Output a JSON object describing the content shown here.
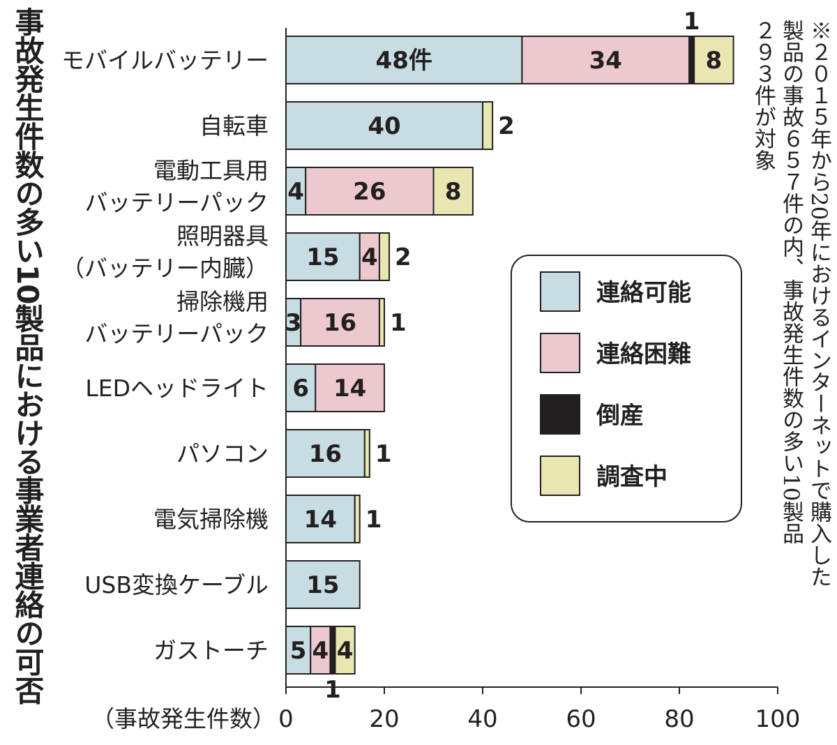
{
  "chart_data": {
    "type": "bar",
    "orientation": "horizontal",
    "stacked": true,
    "title": "事故発生件数の多い10製品における事業者連絡の可否",
    "xlabel": "（事故発生件数）",
    "xlim": [
      0,
      100
    ],
    "xticks": [
      "0",
      "20",
      "40",
      "60",
      "80",
      "100"
    ],
    "grid": false,
    "legend_position": "right",
    "note": [
      "※２０１５年から20年におけるインターネットで購入した",
      "製品の事故６５７件の内、事故発生件数の多い10製品",
      "２９３件が対象"
    ],
    "categories": [
      [
        "モバイルバッテリー"
      ],
      [
        "自転車"
      ],
      [
        "電動工具用",
        "バッテリーパック"
      ],
      [
        "照明器具",
        "（バッテリー内臓）"
      ],
      [
        "掃除機用",
        "バッテリーパック"
      ],
      [
        "LEDヘッドライト"
      ],
      [
        "パソコン"
      ],
      [
        "電気掃除機"
      ],
      [
        "USB変換ケーブル"
      ],
      [
        "ガストーチ"
      ]
    ],
    "series": [
      {
        "name": "連絡可能",
        "color": "#c7dde3",
        "values": [
          48,
          40,
          4,
          15,
          3,
          6,
          16,
          14,
          15,
          5
        ]
      },
      {
        "name": "連絡困難",
        "color": "#ecc9ce",
        "values": [
          34,
          0,
          26,
          4,
          16,
          14,
          0,
          0,
          0,
          4
        ]
      },
      {
        "name": "倒産",
        "color": "#231f20",
        "values": [
          1,
          0,
          0,
          0,
          0,
          0,
          0,
          0,
          0,
          1
        ]
      },
      {
        "name": "調査中",
        "color": "#e8e6b1",
        "values": [
          8,
          2,
          8,
          2,
          1,
          0,
          1,
          1,
          0,
          4
        ]
      }
    ],
    "first_value_suffix": "件"
  }
}
